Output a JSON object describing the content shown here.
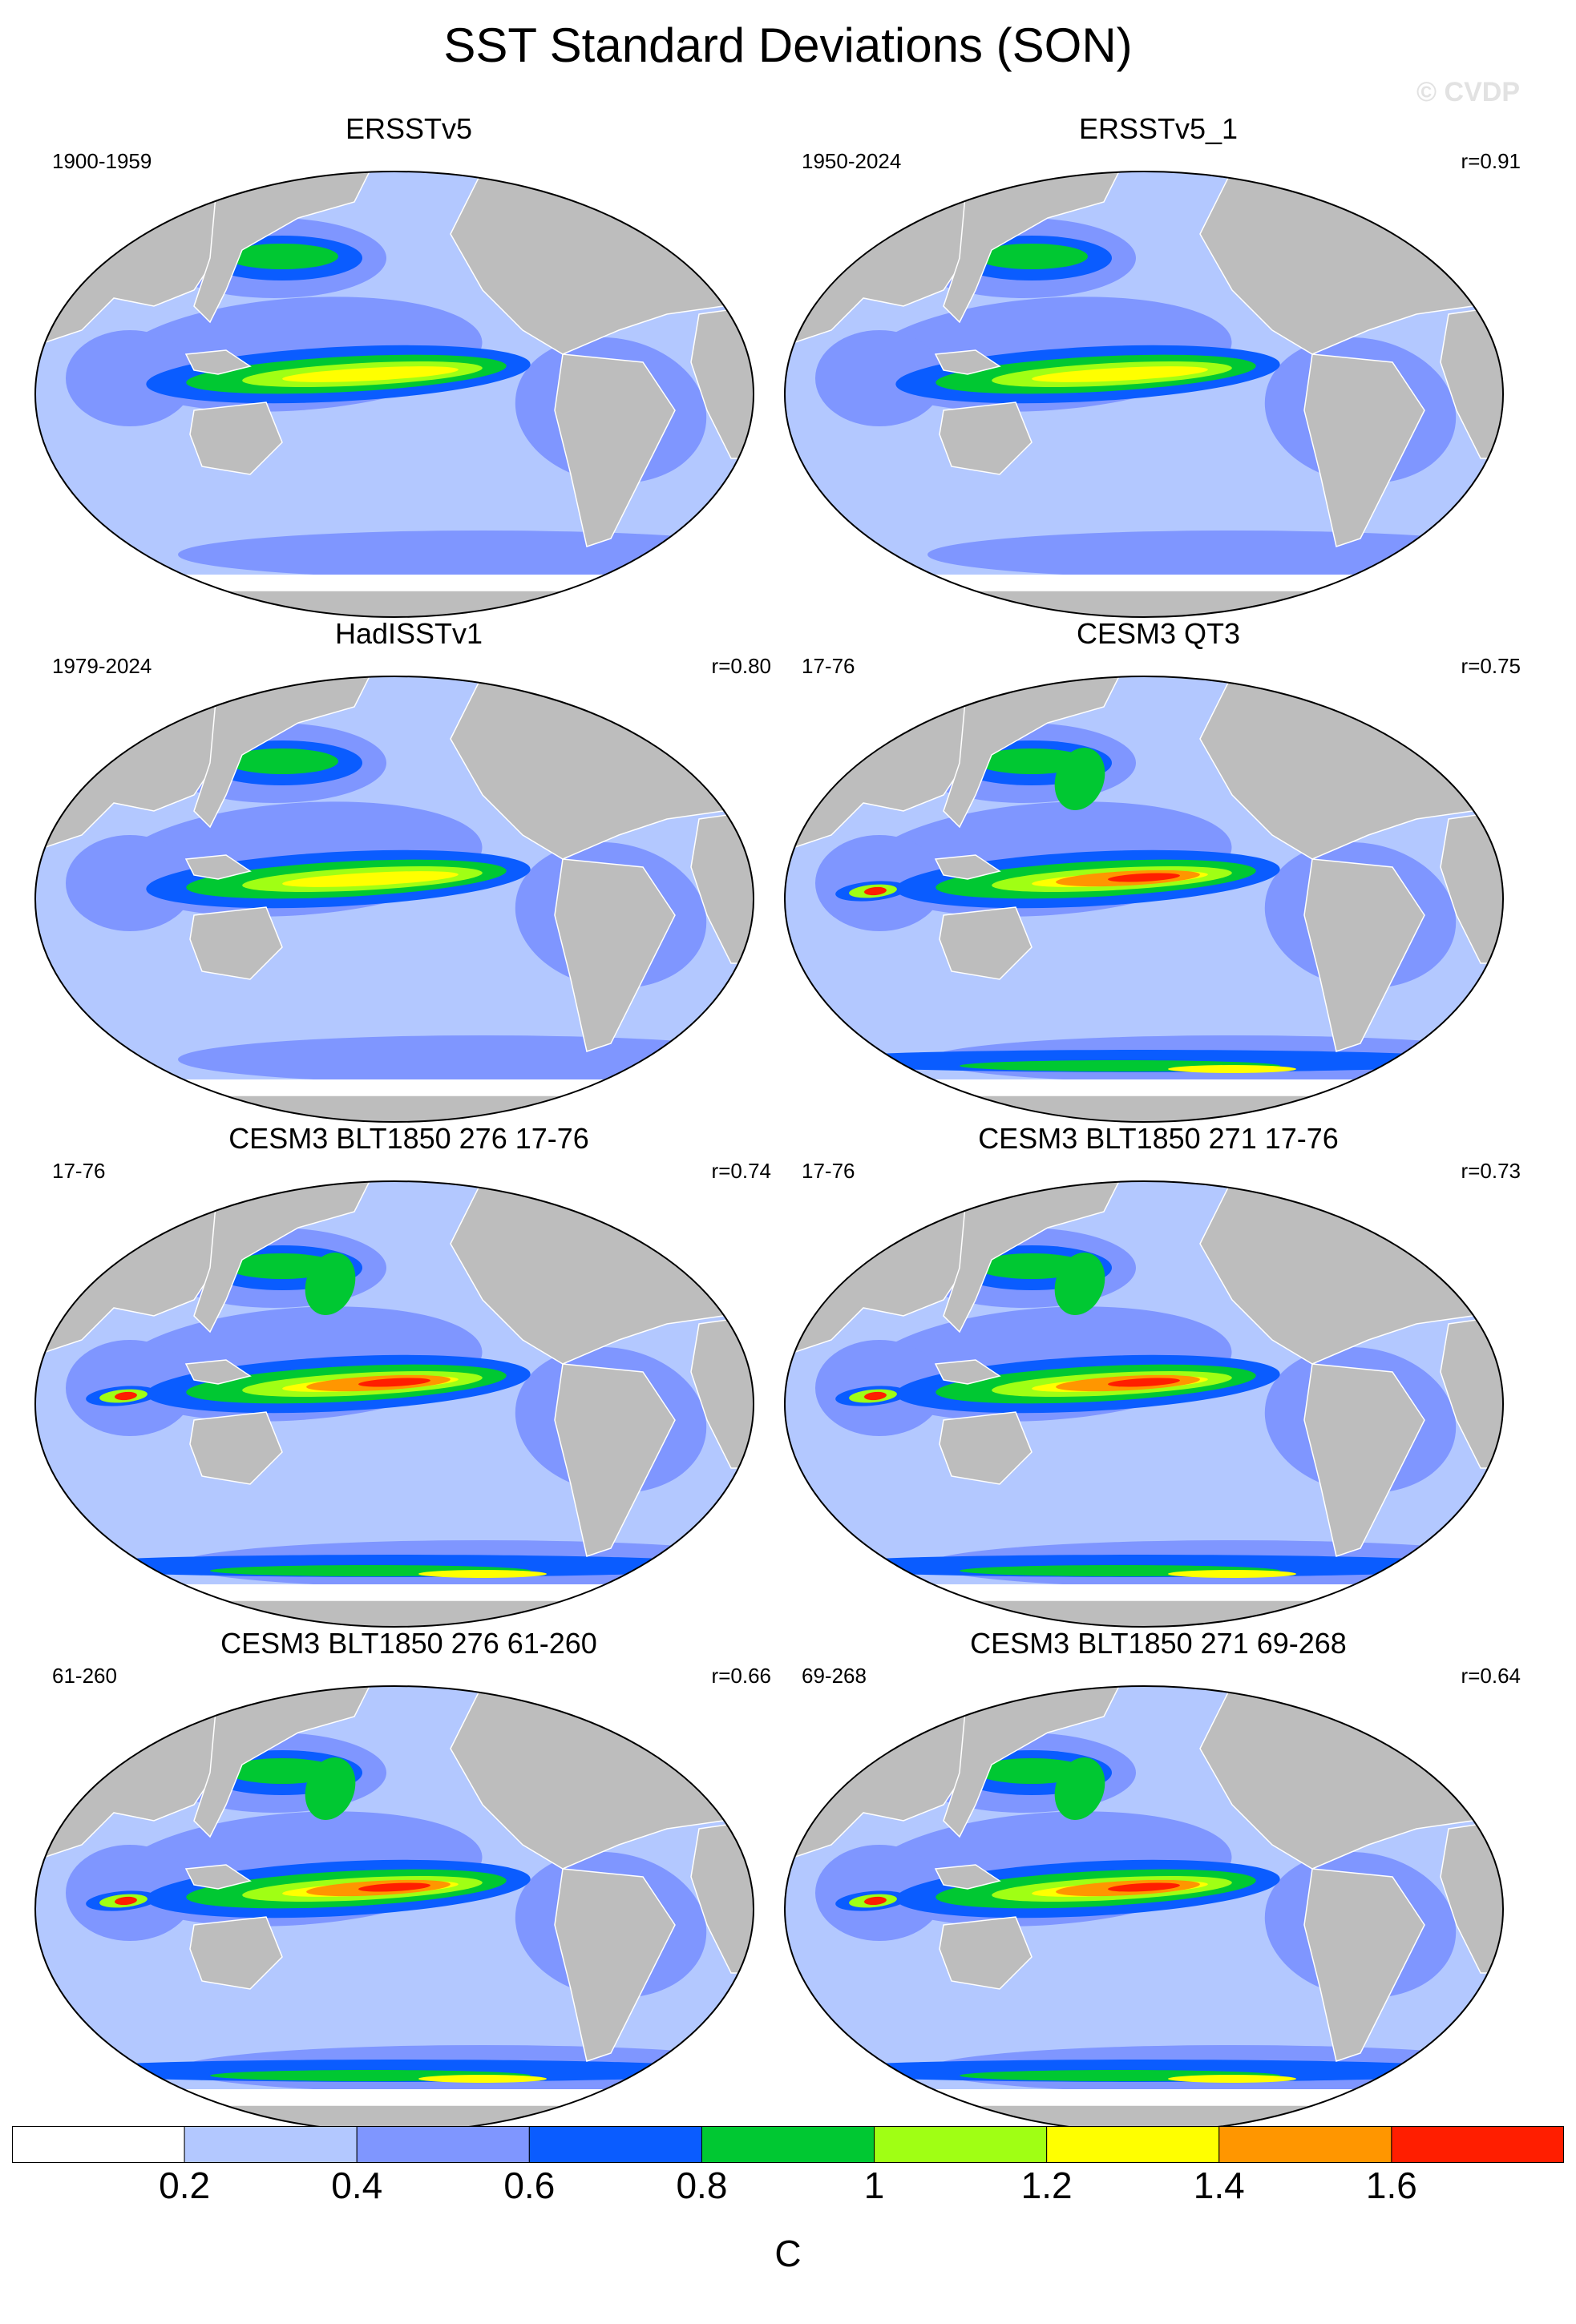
{
  "figure": {
    "title": "SST Standard Deviations (SON)",
    "watermark": "© CVDP"
  },
  "panels": [
    {
      "title": "ERSSTv5",
      "period": "1900-1959",
      "r": "",
      "intensity": 0.55
    },
    {
      "title": "ERSSTv5_1",
      "period": "1950-2024",
      "r": "r=0.91",
      "intensity": 0.55
    },
    {
      "title": "HadISSTv1",
      "period": "1979-2024",
      "r": "r=0.80",
      "intensity": 0.6
    },
    {
      "title": "CESM3 QT3",
      "period": "17-76",
      "r": "r=0.75",
      "intensity": 1.0
    },
    {
      "title": "CESM3 BLT1850 276 17-76",
      "period": "17-76",
      "r": "r=0.74",
      "intensity": 1.0
    },
    {
      "title": "CESM3 BLT1850 271 17-76",
      "period": "17-76",
      "r": "r=0.73",
      "intensity": 1.0
    },
    {
      "title": "CESM3 BLT1850 276 61-260",
      "period": "61-260",
      "r": "r=0.66",
      "intensity": 1.05
    },
    {
      "title": "CESM3 BLT1850 271 69-268",
      "period": "69-268",
      "r": "r=0.64",
      "intensity": 1.0
    }
  ],
  "colorbar": {
    "units": "C",
    "levels": [
      "0.2",
      "0.4",
      "0.6",
      "0.8",
      "1",
      "1.2",
      "1.4",
      "1.6"
    ],
    "colors": [
      "#ffffff",
      "#b3c8ff",
      "#7f96ff",
      "#0a5cff",
      "#00c832",
      "#a0ff14",
      "#ffff00",
      "#ff9600",
      "#ff1e00"
    ]
  },
  "colors": {
    "land": "#bdbdbd",
    "ocean_base": "#b3c8ff"
  }
}
